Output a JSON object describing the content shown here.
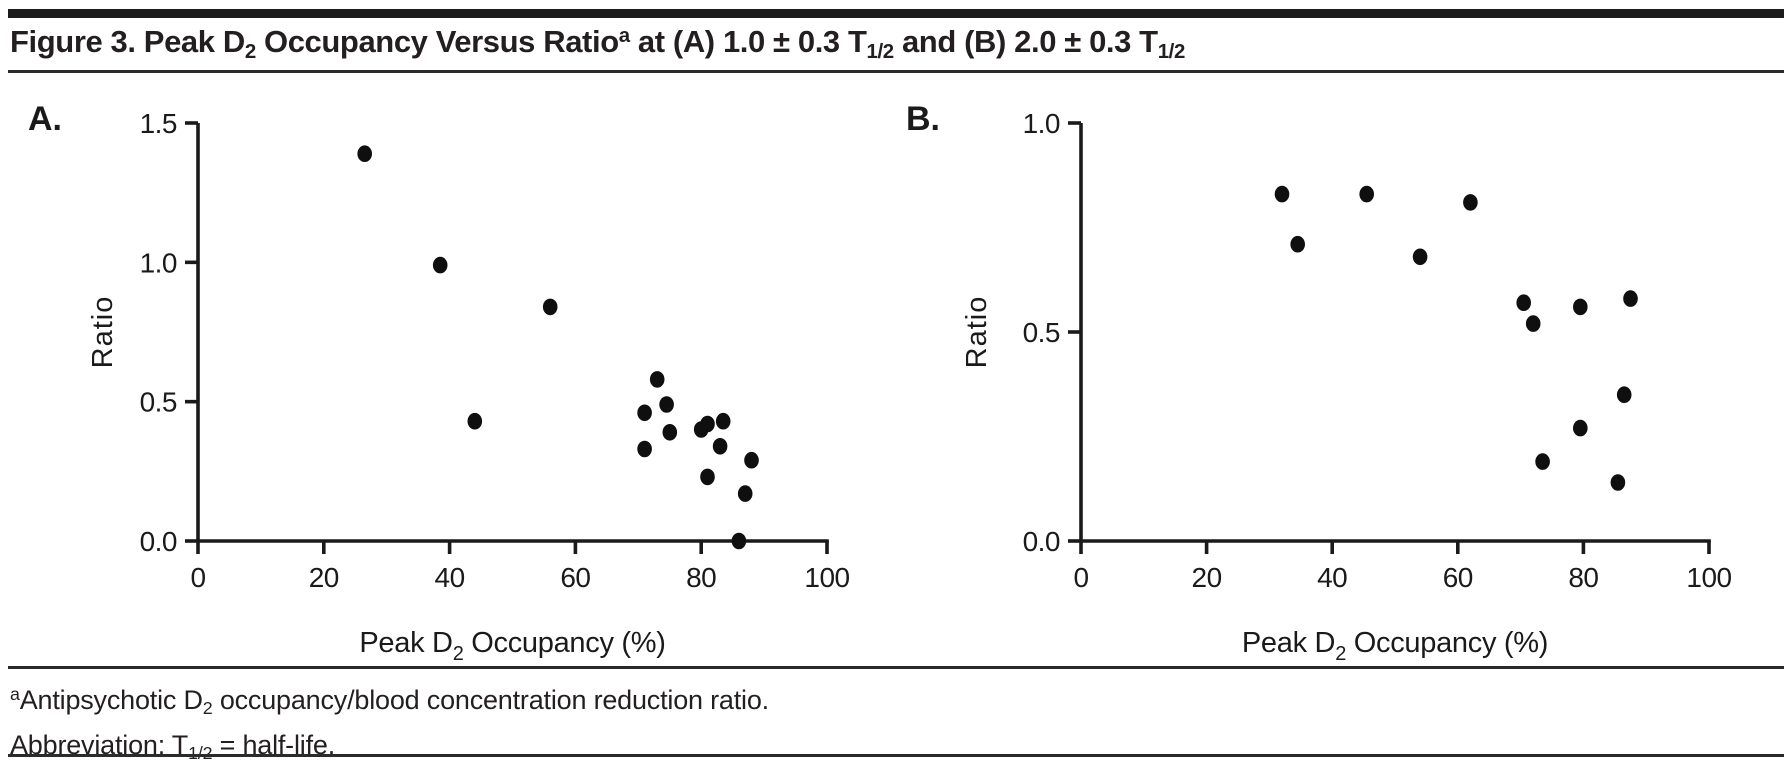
{
  "figure": {
    "title": "Figure 3. Peak D_{2} Occupancy Versus Ratio^{a} at (A) 1.0 ± 0.3 T_{1/2} and (B) 2.0 ± 0.3 T_{1/2}",
    "footnotes": [
      "^{a}Antipsychotic D_{2} occupancy/blood concentration reduction ratio.",
      "Abbreviation: T_{1/2} = half-life."
    ],
    "colors": {
      "ink": "#1a1a1a",
      "point": "#0f0f0f",
      "top_bar": "#1c1c1c",
      "rule": "#2b2b2b",
      "background": "#ffffff"
    }
  },
  "chart_data": [
    {
      "id": "A",
      "type": "scatter",
      "panel_label": "A.",
      "xlabel": "Peak D_{2} Occupancy (%)",
      "ylabel": "Ratio",
      "xlim": [
        0,
        100
      ],
      "ylim": [
        0,
        1.5
      ],
      "xticks": [
        0,
        20,
        40,
        60,
        80,
        100
      ],
      "yticks": [
        0,
        0.5,
        1.0,
        1.5
      ],
      "ytick_labels": [
        "0.0",
        "0.5",
        "1.0",
        "1.5"
      ],
      "grid": false,
      "legend": "none",
      "points": [
        [
          26.5,
          1.39
        ],
        [
          38.5,
          0.99
        ],
        [
          44,
          0.43
        ],
        [
          56,
          0.84
        ],
        [
          71,
          0.33
        ],
        [
          71,
          0.46
        ],
        [
          73,
          0.58
        ],
        [
          74.5,
          0.49
        ],
        [
          75,
          0.39
        ],
        [
          80,
          0.4
        ],
        [
          81,
          0.42
        ],
        [
          81,
          0.23
        ],
        [
          83,
          0.34
        ],
        [
          83.5,
          0.43
        ],
        [
          86,
          0.0
        ],
        [
          87,
          0.17
        ],
        [
          88,
          0.29
        ]
      ]
    },
    {
      "id": "B",
      "type": "scatter",
      "panel_label": "B.",
      "xlabel": "Peak D_{2} Occupancy (%)",
      "ylabel": "Ratio",
      "xlim": [
        0,
        100
      ],
      "ylim": [
        0,
        1.0
      ],
      "xticks": [
        0,
        20,
        40,
        60,
        80,
        100
      ],
      "yticks": [
        0,
        0.5,
        1.0
      ],
      "ytick_labels": [
        "0.0",
        "0.5",
        "1.0"
      ],
      "grid": false,
      "legend": "none",
      "points": [
        [
          32,
          0.83
        ],
        [
          34.5,
          0.71
        ],
        [
          45.5,
          0.83
        ],
        [
          54,
          0.68
        ],
        [
          62,
          0.81
        ],
        [
          70.5,
          0.57
        ],
        [
          72,
          0.52
        ],
        [
          73.5,
          0.19
        ],
        [
          79.5,
          0.27
        ],
        [
          79.5,
          0.56
        ],
        [
          85.5,
          0.14
        ],
        [
          86.5,
          0.35
        ],
        [
          87.5,
          0.58
        ]
      ]
    }
  ]
}
